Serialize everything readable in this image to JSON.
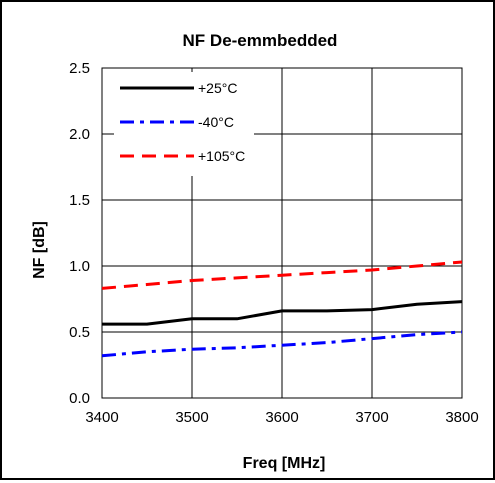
{
  "chart_data": {
    "type": "line",
    "title": "NF De-emmbedded",
    "xlabel": "Freq [MHz]",
    "ylabel": "NF [dB]",
    "xlim": [
      3400,
      3800
    ],
    "ylim": [
      0,
      2.5
    ],
    "xticks": [
      "3400",
      "3500",
      "3600",
      "3700",
      "3800"
    ],
    "yticks": [
      "0.0",
      "0.5",
      "1.0",
      "1.5",
      "2.0",
      "2.5"
    ],
    "grid": true,
    "legend_position": "top-left",
    "x": [
      3400,
      3450,
      3500,
      3550,
      3600,
      3650,
      3700,
      3750,
      3800
    ],
    "series": [
      {
        "name": "+25°C",
        "color": "#000000",
        "dash": "solid",
        "values": [
          0.56,
          0.56,
          0.6,
          0.6,
          0.66,
          0.66,
          0.67,
          0.71,
          0.73
        ]
      },
      {
        "name": "-40°C",
        "color": "#0000ff",
        "dash": "dashdot",
        "values": [
          0.32,
          0.35,
          0.37,
          0.38,
          0.4,
          0.42,
          0.45,
          0.48,
          0.5
        ]
      },
      {
        "name": "+105°C",
        "color": "#ff0000",
        "dash": "dash",
        "values": [
          0.83,
          0.86,
          0.89,
          0.91,
          0.93,
          0.95,
          0.97,
          1.0,
          1.03
        ]
      }
    ]
  }
}
